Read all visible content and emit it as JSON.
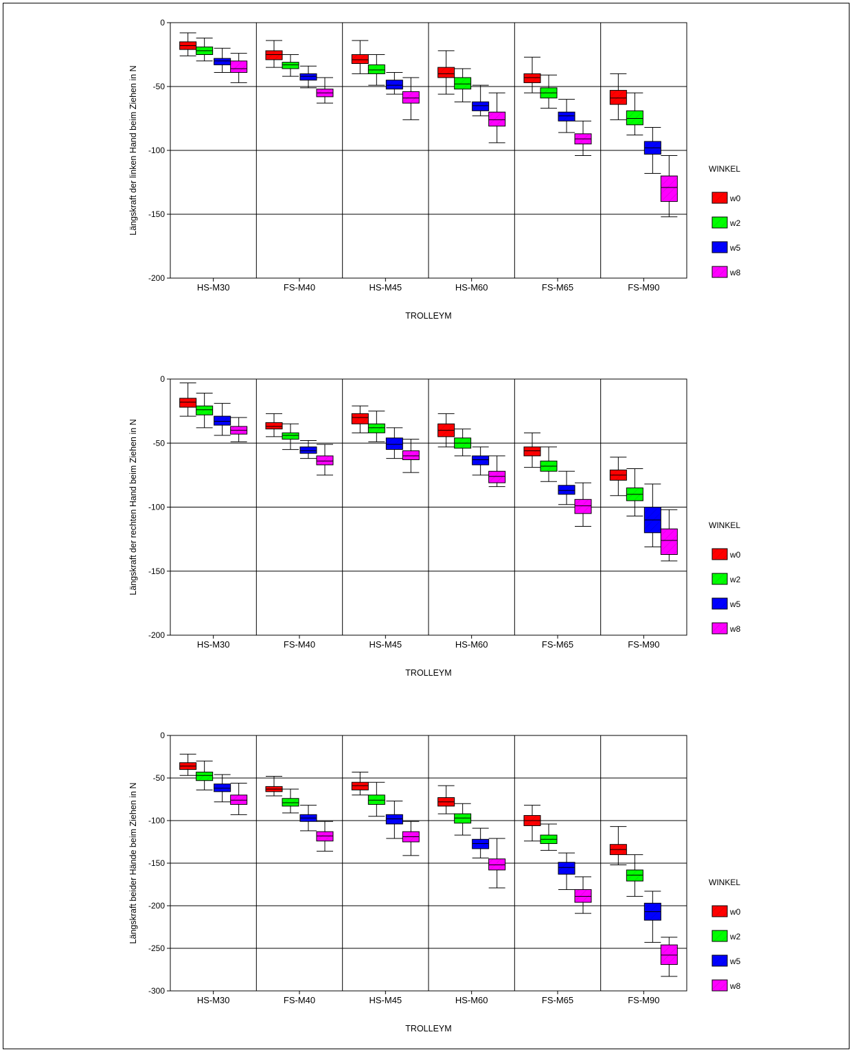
{
  "legend": {
    "title": "WINKEL",
    "items": [
      {
        "name": "w0",
        "color": "#ff0000"
      },
      {
        "name": "w2",
        "color": "#00ff00"
      },
      {
        "name": "w5",
        "color": "#0000ff"
      },
      {
        "name": "w8",
        "color": "#ff00ff"
      }
    ]
  },
  "chart_data": [
    {
      "type": "boxplot",
      "xlabel": "TROLLEYM",
      "ylabel": "Längskraft der linken Hand beim Ziehen in N",
      "ylim": [
        -200,
        0
      ],
      "yticks": [
        0,
        -50,
        -100,
        -150,
        -200
      ],
      "categories": [
        "HS-M30",
        "FS-M40",
        "HS-M45",
        "HS-M60",
        "FS-M65",
        "FS-M90"
      ],
      "series": [
        {
          "name": "w0",
          "boxes": [
            [
              -26,
              -21,
              -18,
              -15,
              -8
            ],
            [
              -35,
              -29,
              -25,
              -22,
              -14
            ],
            [
              -40,
              -32,
              -29,
              -25,
              -14
            ],
            [
              -56,
              -43,
              -40,
              -35,
              -22
            ],
            [
              -55,
              -47,
              -43,
              -40,
              -27
            ],
            [
              -76,
              -64,
              -59,
              -53,
              -40
            ]
          ]
        },
        {
          "name": "w2",
          "boxes": [
            [
              -30,
              -25,
              -22,
              -19,
              -12
            ],
            [
              -42,
              -36,
              -33,
              -31,
              -25
            ],
            [
              -49,
              -40,
              -37,
              -33,
              -25
            ],
            [
              -62,
              -52,
              -48,
              -43,
              -36
            ],
            [
              -67,
              -59,
              -55,
              -51,
              -41
            ],
            [
              -88,
              -80,
              -75,
              -69,
              -55
            ]
          ]
        },
        {
          "name": "w5",
          "boxes": [
            [
              -39,
              -33,
              -30,
              -28,
              -20
            ],
            [
              -51,
              -45,
              -42,
              -40,
              -34
            ],
            [
              -56,
              -52,
              -49,
              -45,
              -39
            ],
            [
              -73,
              -69,
              -65,
              -62,
              -49
            ],
            [
              -86,
              -77,
              -73,
              -70,
              -60
            ],
            [
              -118,
              -103,
              -98,
              -93,
              -82
            ]
          ]
        },
        {
          "name": "w8",
          "boxes": [
            [
              -47,
              -39,
              -36,
              -30,
              -24
            ],
            [
              -63,
              -58,
              -55,
              -52,
              -43
            ],
            [
              -76,
              -63,
              -59,
              -54,
              -43
            ],
            [
              -94,
              -81,
              -76,
              -70,
              -55
            ],
            [
              -104,
              -95,
              -91,
              -87,
              -77
            ],
            [
              -152,
              -140,
              -129,
              -120,
              -104
            ]
          ]
        }
      ]
    },
    {
      "type": "boxplot",
      "xlabel": "TROLLEYM",
      "ylabel": "Längskraft der rechten Hand beim Ziehen in N",
      "ylim": [
        -200,
        0
      ],
      "yticks": [
        0,
        -50,
        -100,
        -150,
        -200
      ],
      "categories": [
        "HS-M30",
        "FS-M40",
        "HS-M45",
        "HS-M60",
        "FS-M65",
        "FS-M90"
      ],
      "series": [
        {
          "name": "w0",
          "boxes": [
            [
              -29,
              -22,
              -18,
              -15,
              -3
            ],
            [
              -45,
              -39,
              -37,
              -34,
              -27
            ],
            [
              -42,
              -35,
              -30,
              -27,
              -21
            ],
            [
              -53,
              -45,
              -40,
              -35,
              -27
            ],
            [
              -69,
              -60,
              -56,
              -53,
              -42
            ],
            [
              -91,
              -79,
              -75,
              -71,
              -61
            ]
          ]
        },
        {
          "name": "w2",
          "boxes": [
            [
              -38,
              -28,
              -24,
              -21,
              -11
            ],
            [
              -55,
              -47,
              -44,
              -42,
              -35
            ],
            [
              -49,
              -42,
              -38,
              -35,
              -25
            ],
            [
              -60,
              -54,
              -50,
              -46,
              -39
            ],
            [
              -80,
              -72,
              -68,
              -64,
              -53
            ],
            [
              -107,
              -95,
              -90,
              -85,
              -70
            ]
          ]
        },
        {
          "name": "w5",
          "boxes": [
            [
              -44,
              -36,
              -33,
              -29,
              -19
            ],
            [
              -62,
              -58,
              -56,
              -53,
              -48
            ],
            [
              -62,
              -55,
              -51,
              -46,
              -38
            ],
            [
              -75,
              -67,
              -63,
              -60,
              -53
            ],
            [
              -98,
              -90,
              -87,
              -83,
              -72
            ],
            [
              -131,
              -120,
              -110,
              -100,
              -82
            ]
          ]
        },
        {
          "name": "w8",
          "boxes": [
            [
              -49,
              -43,
              -40,
              -37,
              -30
            ],
            [
              -75,
              -67,
              -64,
              -60,
              -51
            ],
            [
              -73,
              -63,
              -60,
              -56,
              -47
            ],
            [
              -84,
              -81,
              -76,
              -72,
              -60
            ],
            [
              -115,
              -105,
              -99,
              -94,
              -81
            ],
            [
              -142,
              -137,
              -126,
              -117,
              -102
            ]
          ]
        }
      ]
    },
    {
      "type": "boxplot",
      "xlabel": "TROLLEYM",
      "ylabel": "Längskraft beider Hände beim Ziehen in N",
      "ylim": [
        -300,
        0
      ],
      "yticks": [
        0,
        -50,
        -100,
        -150,
        -200,
        -250,
        -300
      ],
      "categories": [
        "HS-M30",
        "FS-M40",
        "HS-M45",
        "HS-M60",
        "FS-M65",
        "FS-M90"
      ],
      "series": [
        {
          "name": "w0",
          "boxes": [
            [
              -47,
              -40,
              -36,
              -32,
              -22
            ],
            [
              -71,
              -66,
              -63,
              -60,
              -48
            ],
            [
              -70,
              -64,
              -59,
              -55,
              -43
            ],
            [
              -92,
              -83,
              -78,
              -73,
              -59
            ],
            [
              -124,
              -106,
              -100,
              -94,
              -82
            ],
            [
              -152,
              -140,
              -134,
              -128,
              -107
            ]
          ]
        },
        {
          "name": "w2",
          "boxes": [
            [
              -64,
              -53,
              -47,
              -43,
              -30
            ],
            [
              -91,
              -83,
              -79,
              -74,
              -63
            ],
            [
              -95,
              -81,
              -76,
              -70,
              -55
            ],
            [
              -117,
              -103,
              -97,
              -92,
              -80
            ],
            [
              -135,
              -127,
              -122,
              -117,
              -104
            ],
            [
              -189,
              -171,
              -164,
              -158,
              -140
            ]
          ]
        },
        {
          "name": "w5",
          "boxes": [
            [
              -78,
              -66,
              -62,
              -57,
              -46
            ],
            [
              -112,
              -101,
              -97,
              -93,
              -82
            ],
            [
              -121,
              -104,
              -98,
              -93,
              -77
            ],
            [
              -144,
              -133,
              -127,
              -122,
              -109
            ],
            [
              -181,
              -163,
              -155,
              -149,
              -138
            ],
            [
              -243,
              -217,
              -207,
              -197,
              -183
            ]
          ]
        },
        {
          "name": "w8",
          "boxes": [
            [
              -93,
              -81,
              -76,
              -70,
              -56
            ],
            [
              -136,
              -124,
              -118,
              -113,
              -101
            ],
            [
              -141,
              -125,
              -119,
              -113,
              -101
            ],
            [
              -179,
              -158,
              -152,
              -145,
              -121
            ],
            [
              -209,
              -196,
              -189,
              -181,
              -166
            ],
            [
              -283,
              -269,
              -258,
              -246,
              -237
            ]
          ]
        }
      ]
    }
  ]
}
